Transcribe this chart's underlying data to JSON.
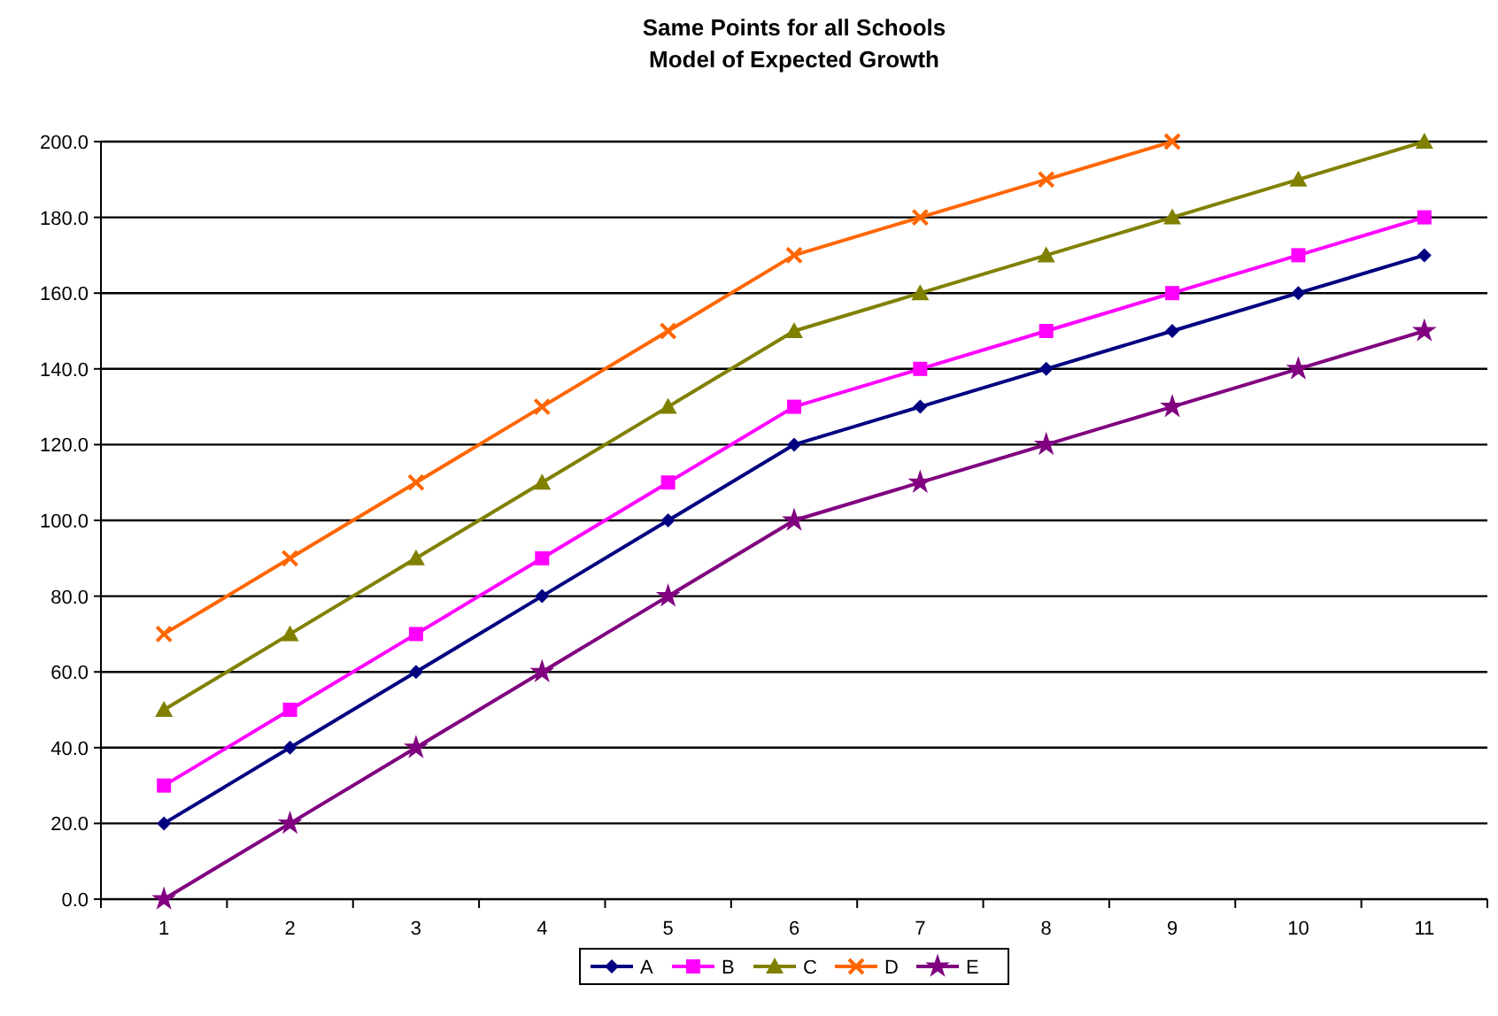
{
  "chart_data": {
    "type": "line",
    "title": "Same Points for all Schools\nModel of Expected Growth",
    "categories": [
      "1",
      "2",
      "3",
      "4",
      "5",
      "6",
      "7",
      "8",
      "9",
      "10",
      "11"
    ],
    "series": [
      {
        "name": "A",
        "color": "#000080",
        "marker": "diamond",
        "values": [
          20,
          40,
          60,
          80,
          100,
          120,
          130,
          140,
          150,
          160,
          170
        ]
      },
      {
        "name": "B",
        "color": "#ff00ff",
        "marker": "square",
        "values": [
          30,
          50,
          70,
          90,
          110,
          130,
          140,
          150,
          160,
          170,
          180
        ]
      },
      {
        "name": "C",
        "color": "#808000",
        "marker": "triangle",
        "values": [
          50,
          70,
          90,
          110,
          130,
          150,
          160,
          170,
          180,
          190,
          200
        ]
      },
      {
        "name": "D",
        "color": "#ff6600",
        "marker": "cross",
        "values": [
          70,
          90,
          110,
          130,
          150,
          170,
          180,
          190,
          200,
          null,
          null
        ]
      },
      {
        "name": "E",
        "color": "#800080",
        "marker": "star",
        "values": [
          0,
          20,
          40,
          60,
          80,
          100,
          110,
          120,
          130,
          140,
          150
        ]
      }
    ],
    "ylim": [
      0,
      200
    ],
    "yticks": [
      {
        "value": 0,
        "label": "0.0"
      },
      {
        "value": 20,
        "label": "20.0"
      },
      {
        "value": 40,
        "label": "40.0"
      },
      {
        "value": 60,
        "label": "60.0"
      },
      {
        "value": 80,
        "label": "80.0"
      },
      {
        "value": 100,
        "label": "100.0"
      },
      {
        "value": 120,
        "label": "120.0"
      },
      {
        "value": 140,
        "label": "140.0"
      },
      {
        "value": 160,
        "label": "160.0"
      },
      {
        "value": 180,
        "label": "180.0"
      },
      {
        "value": 200,
        "label": "200.0"
      }
    ],
    "grid": "y",
    "legend": "bottom"
  }
}
